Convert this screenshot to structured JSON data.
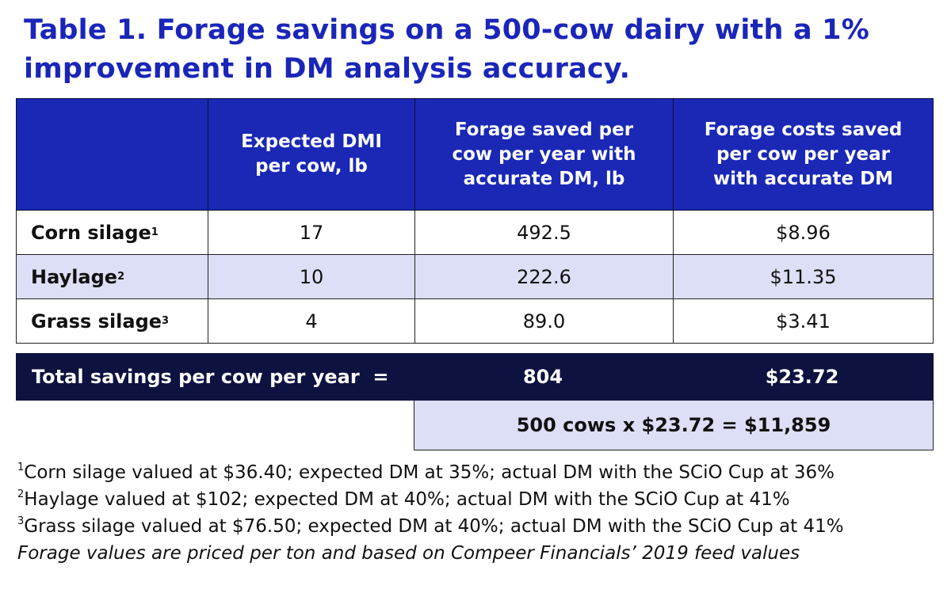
{
  "title": "Table 1. Forage savings on a 500-cow dairy with a 1% improvement in DM analysis accuracy.",
  "headers": {
    "col0": "",
    "col1": "Expected DMI per cow, lb",
    "col2": "Forage saved per cow per year with accurate DM, lb",
    "col3": "Forage costs saved per cow per year with accurate DM"
  },
  "rows": [
    {
      "label": "Corn silage",
      "sup": "1",
      "dmi": "17",
      "saved_lb": "492.5",
      "saved_cost": "$8.96"
    },
    {
      "label": "Haylage",
      "sup": "2",
      "dmi": "10",
      "saved_lb": "222.6",
      "saved_cost": "$11.35"
    },
    {
      "label": "Grass silage",
      "sup": "3",
      "dmi": "4",
      "saved_lb": "89.0",
      "saved_cost": "$3.41"
    }
  ],
  "total": {
    "label": "Total savings per cow per year  =",
    "saved_lb": "804",
    "saved_cost": "$23.72"
  },
  "herd_calc": "500 cows x $23.72 = $11,859",
  "footnotes": [
    {
      "sup": "1",
      "text": "Corn silage valued at $36.40; expected DM at 35%; actual DM with the SCiO Cup at 36%"
    },
    {
      "sup": "2",
      "text": "Haylage valued at $102; expected DM at 40%; actual DM with the SCiO Cup at 41%"
    },
    {
      "sup": "3",
      "text": "Grass silage valued at $76.50; expected DM at 40%; actual DM with the SCiO Cup at 41%"
    }
  ],
  "source_note": "Forage values are priced per ton and based on Compeer Financials’ 2019 feed values",
  "colors": {
    "title": "#1a26b8",
    "header_bg": "#1a28b5",
    "total_bg": "#0e1240",
    "alt_row_bg": "#dcdff5"
  }
}
